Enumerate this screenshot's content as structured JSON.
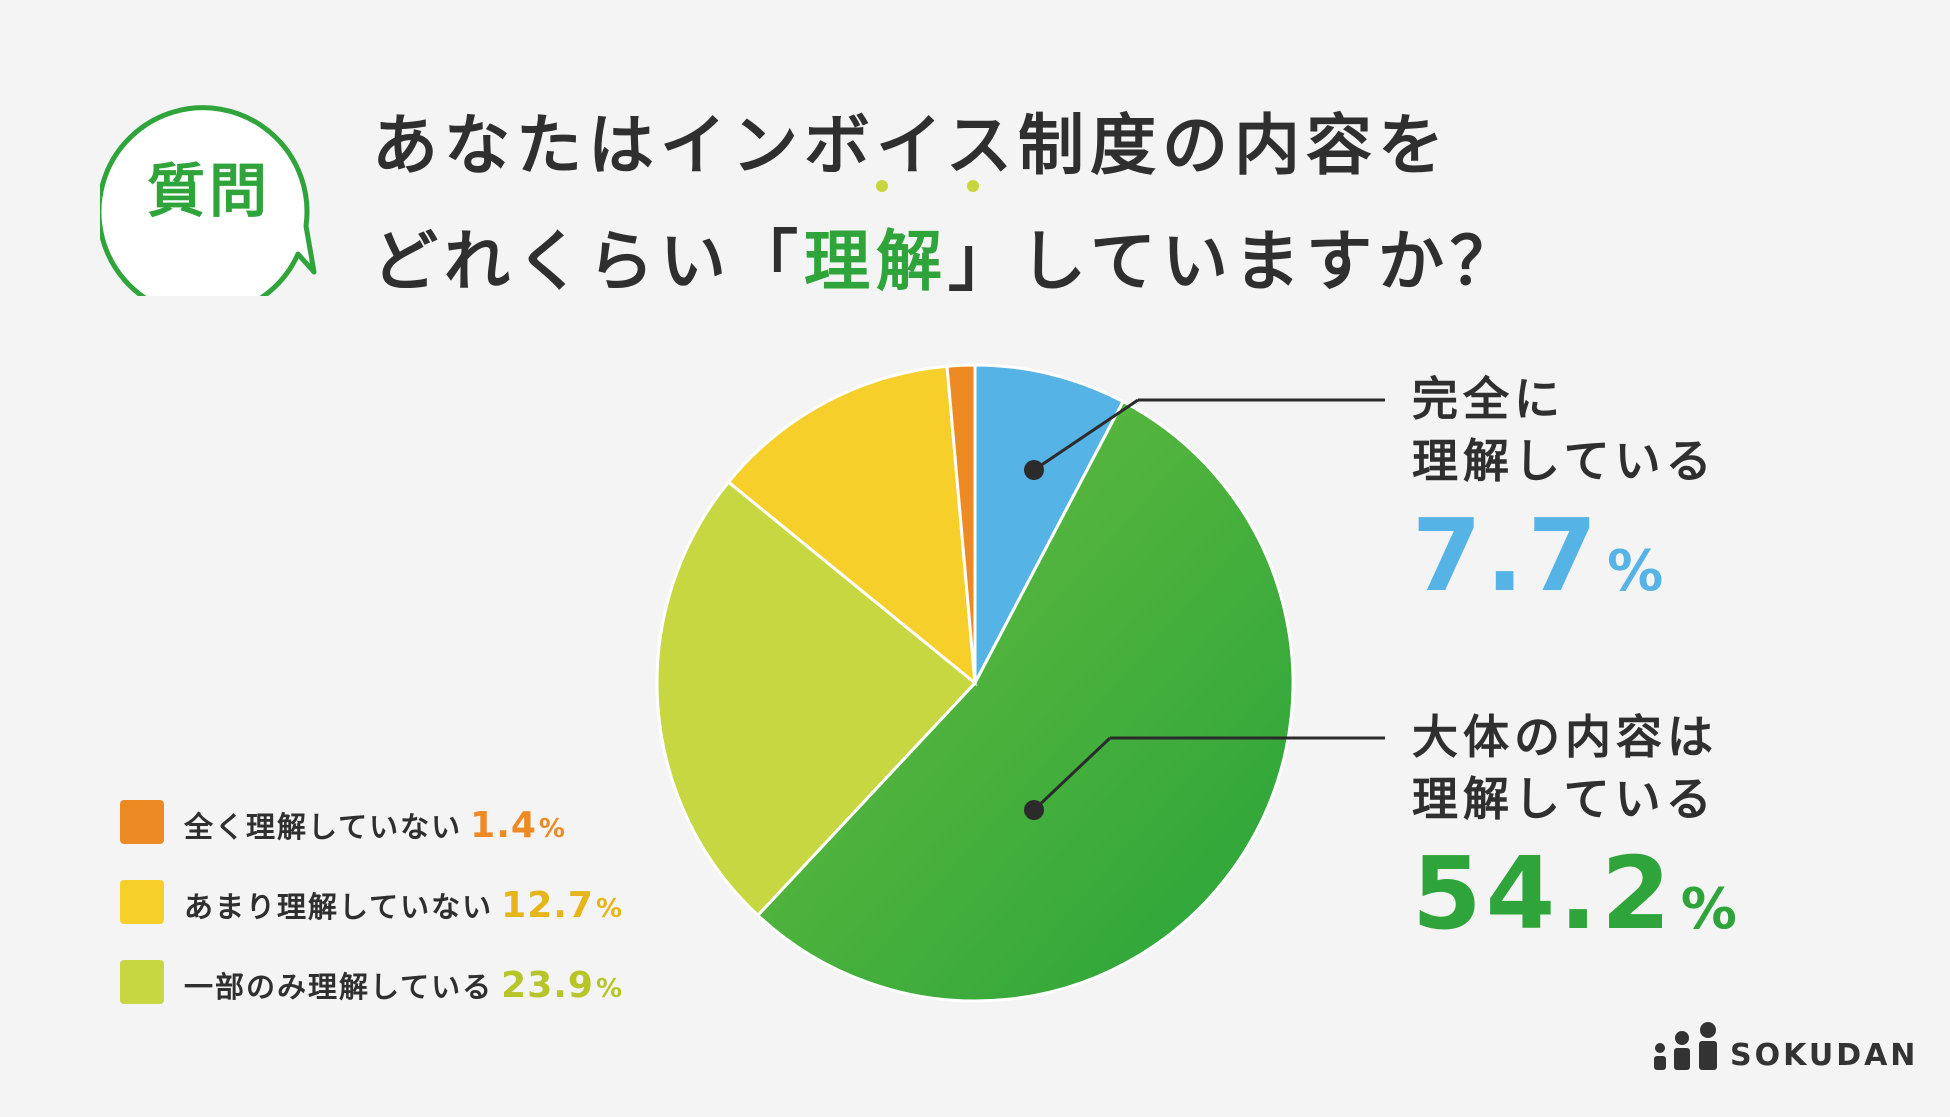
{
  "badge": {
    "text": "質問",
    "color": "#2ea43a"
  },
  "title": {
    "line1": "あなたはインボイス制度の内容を",
    "line2_before": "どれくらい「",
    "line2_highlight": "理解",
    "line2_after": "」していますか？"
  },
  "chart_data": {
    "type": "pie",
    "title": "あなたはインボイス制度の内容をどれくらい「理解」していますか？",
    "start_angle_deg": 0,
    "direction": "clockwise",
    "slices": [
      {
        "label": "完全に理解している",
        "value": 7.7,
        "color": "#55b3e6"
      },
      {
        "label": "大体の内容は理解している",
        "value": 54.2,
        "color": "#3fa83b",
        "gradient": [
          "#6cbe3f",
          "#27a33a"
        ]
      },
      {
        "label": "一部のみ理解している",
        "value": 23.9,
        "color": "#c7d741"
      },
      {
        "label": "あまり理解していない",
        "value": 12.7,
        "color": "#f6cf2b"
      },
      {
        "label": "全く理解していない",
        "value": 1.4,
        "color": "#ee8a24"
      }
    ],
    "legend_placement": "bottom-left"
  },
  "callouts": {
    "full": {
      "line1": "完全に",
      "line2": "理解している",
      "value": "7.7",
      "unit": "%",
      "color": "#55b3e6"
    },
    "mostly": {
      "line1": "大体の内容は",
      "line2": "理解している",
      "value": "54.2",
      "unit": "%",
      "color": "#2ea43a"
    }
  },
  "legend": [
    {
      "label": "全く理解していない",
      "value": "1.4",
      "unit": "%",
      "color": "#ee8a24"
    },
    {
      "label": "あまり理解していない",
      "value": "12.7",
      "unit": "%",
      "color": "#e5b51a"
    },
    {
      "label": "一部のみ理解している",
      "value": "23.9",
      "unit": "%",
      "color": "#b6c62a"
    }
  ],
  "legend_swatches": [
    "#ee8a24",
    "#f6cf2b",
    "#c7d741"
  ],
  "logo": {
    "text": "SOKUDAN"
  }
}
